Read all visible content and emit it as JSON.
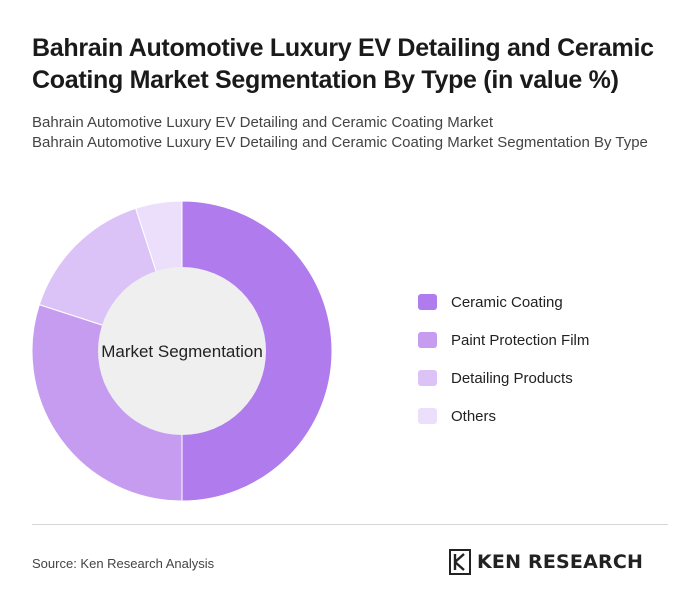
{
  "header": {
    "title": "Bahrain Automotive Luxury EV Detailing and Ceramic Coating Market Segmentation By Type (in value %)",
    "subtitle_line1": "Bahrain Automotive Luxury EV Detailing and Ceramic Coating Market",
    "subtitle_line2": "Bahrain Automotive Luxury EV Detailing and Ceramic Coating Market Segmentation By Type"
  },
  "chart_data": {
    "type": "pie",
    "variant": "donut",
    "center_label": "Market Segmentation",
    "categories": [
      "Ceramic Coating",
      "Paint Protection Film",
      "Detailing Products",
      "Others"
    ],
    "values": [
      50,
      30,
      15,
      5
    ],
    "colors": [
      "#b07ced",
      "#c69cf1",
      "#dbc2f7",
      "#ecdffb"
    ],
    "legend_position": "right"
  },
  "footer": {
    "source": "Source: Ken Research Analysis",
    "logo_text": "KEN RESEARCH"
  }
}
